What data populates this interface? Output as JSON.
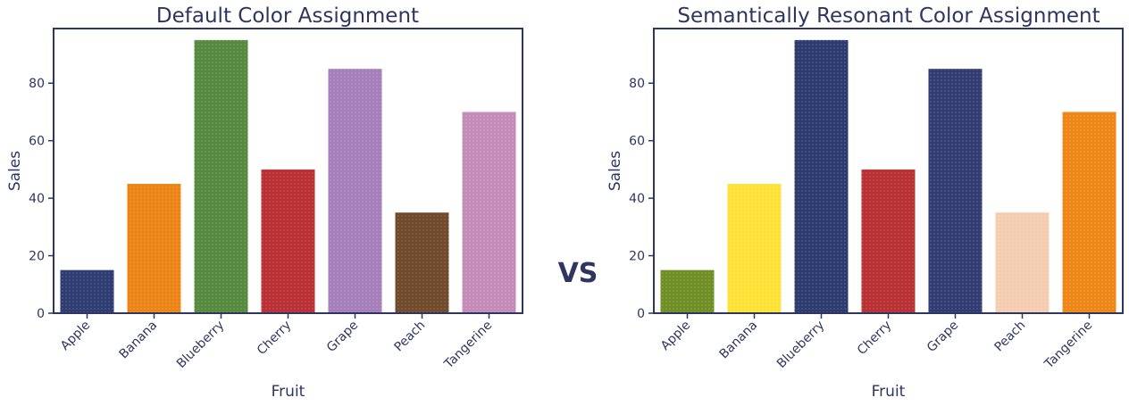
{
  "chart_data": [
    {
      "type": "bar",
      "title": "Default Color Assignment",
      "xlabel": "Fruit",
      "ylabel": "Sales",
      "categories": [
        "Apple",
        "Banana",
        "Blueberry",
        "Cherry",
        "Grape",
        "Peach",
        "Tangerine"
      ],
      "values": [
        15,
        45,
        95,
        50,
        85,
        35,
        70
      ],
      "colors": [
        "#2f3b73",
        "#ec8516",
        "#568a3e",
        "#ba2f33",
        "#a57fba",
        "#704a2b",
        "#c48bb8"
      ],
      "ylim": [
        0,
        99
      ],
      "yticks": [
        0,
        20,
        40,
        60,
        80
      ],
      "grid": false
    },
    {
      "type": "bar",
      "title": "Semantically Resonant Color Assignment",
      "xlabel": "Fruit",
      "ylabel": "Sales",
      "categories": [
        "Apple",
        "Banana",
        "Blueberry",
        "Cherry",
        "Grape",
        "Peach",
        "Tangerine"
      ],
      "values": [
        15,
        45,
        95,
        50,
        85,
        35,
        70
      ],
      "colors": [
        "#6f8f26",
        "#fee238",
        "#2e3b6e",
        "#b93033",
        "#333b73",
        "#f4cdb1",
        "#ee8616"
      ],
      "ylim": [
        0,
        99
      ],
      "yticks": [
        0,
        20,
        40,
        60,
        80
      ],
      "grid": false
    }
  ],
  "separator": {
    "label": "VS"
  }
}
